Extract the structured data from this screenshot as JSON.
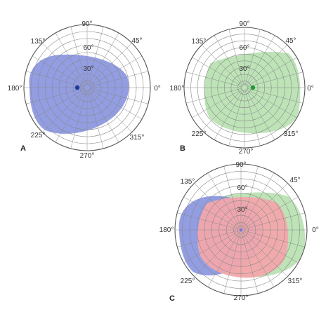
{
  "panels": [
    {
      "letter": "A",
      "angle_labels": [
        "90°",
        "45°",
        "0°",
        "315°",
        "270°",
        "225°",
        "180°",
        "135°"
      ],
      "ecc_labels": [
        "30°",
        "60°"
      ],
      "fields": [
        {
          "name": "left-eye-field",
          "color": "#8c98e0",
          "fixation_color": "#1f3a9c"
        }
      ]
    },
    {
      "letter": "B",
      "angle_labels": [
        "90°",
        "45°",
        "0°",
        "315°",
        "270°",
        "225°",
        "180°",
        "135°"
      ],
      "ecc_labels": [
        "30°",
        "60°"
      ],
      "fields": [
        {
          "name": "right-eye-field",
          "color": "#b9e1b3",
          "fixation_color": "#1e9a3a"
        }
      ]
    },
    {
      "letter": "C",
      "angle_labels": [
        "90°",
        "45°",
        "0°",
        "315°",
        "270°",
        "225°",
        "180°",
        "135°"
      ],
      "ecc_labels": [
        "30°",
        "60°"
      ],
      "fields": [
        {
          "name": "left-eye-field",
          "color": "#8c98e0"
        },
        {
          "name": "right-eye-field",
          "color": "#b9e1b3"
        },
        {
          "name": "binocular-overlap",
          "color": "#f3a6ab"
        }
      ]
    }
  ]
}
